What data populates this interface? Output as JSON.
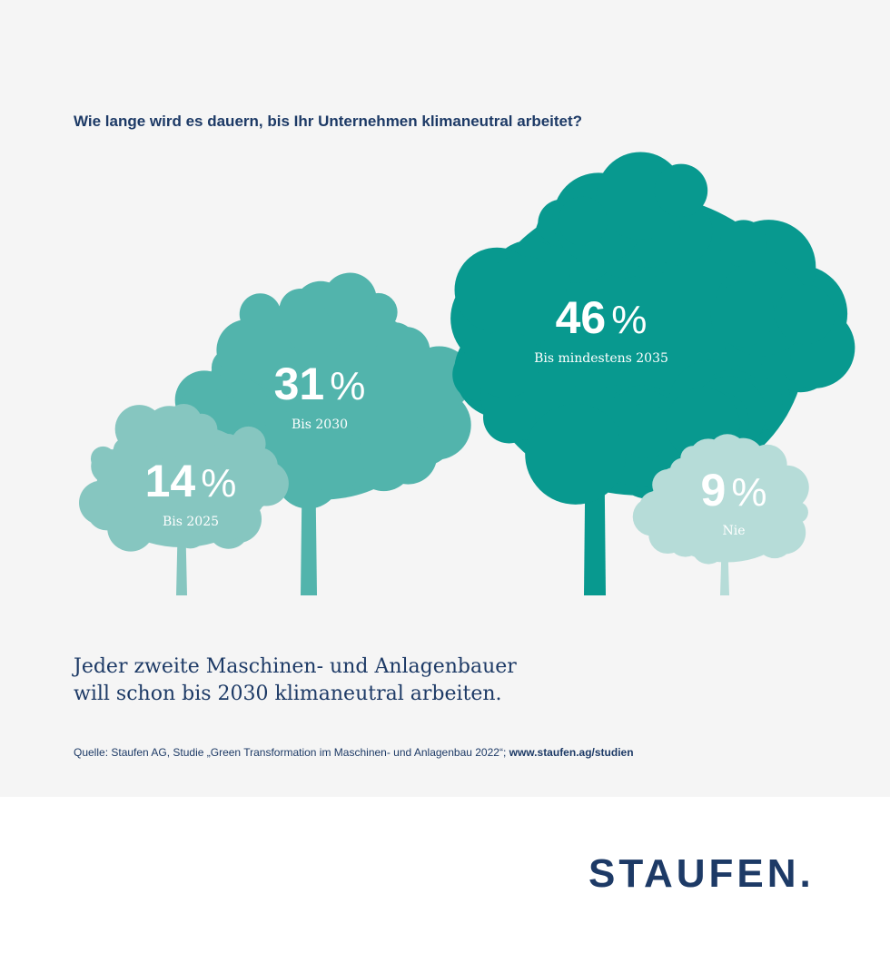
{
  "question": "Wie lange wird es dauern, bis Ihr Unternehmen klimaneutral arbeitet?",
  "chart_data": {
    "type": "pictorial-bar",
    "title": "Wie lange wird es dauern, bis Ihr Unternehmen klimaneutral arbeitet?",
    "unit": "%",
    "categories": [
      "Bis 2025",
      "Bis 2030",
      "Bis mindestens 2035",
      "Nie"
    ],
    "values": [
      14,
      31,
      46,
      9
    ],
    "colors": [
      "#86c6c0",
      "#52b4ac",
      "#08998f",
      "#b6dcd8"
    ]
  },
  "headline": {
    "line1": "Jeder zweite Maschinen- und Anlagenbauer",
    "line2": "will schon bis 2030 klimaneutral arbeiten."
  },
  "source": {
    "text": "Quelle: Staufen AG, Studie „Green Transformation im Maschinen- und Anlagenbau 2022“; ",
    "link": "www.staufen.ag/studien"
  },
  "logo": "STAUFEN."
}
